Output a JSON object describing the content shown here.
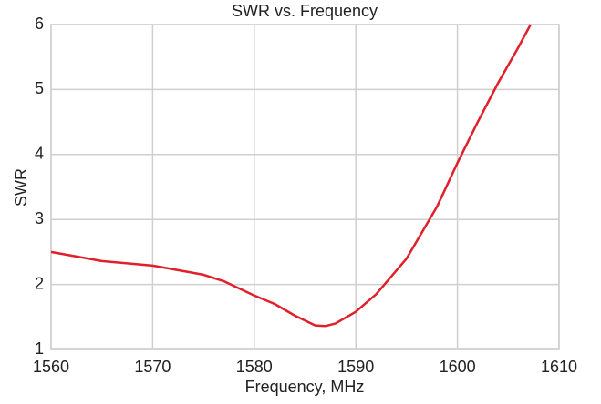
{
  "chart_data": {
    "type": "line",
    "title": "SWR vs. Frequency",
    "xlabel": "Frequency, MHz",
    "ylabel": "SWR",
    "x": [
      1560,
      1565,
      1570,
      1575,
      1577,
      1580,
      1582,
      1584,
      1586,
      1587,
      1588,
      1590,
      1592,
      1595,
      1598,
      1600,
      1602,
      1604,
      1606,
      1607.2
    ],
    "series": [
      {
        "name": "SWR",
        "color": "#e0202a",
        "values": [
          2.5,
          2.36,
          2.29,
          2.15,
          2.05,
          1.83,
          1.7,
          1.52,
          1.37,
          1.36,
          1.4,
          1.58,
          1.85,
          2.4,
          3.2,
          3.87,
          4.5,
          5.1,
          5.65,
          6.0
        ]
      }
    ],
    "xlim": [
      1560,
      1610
    ],
    "xticks": [
      1560,
      1570,
      1580,
      1590,
      1600,
      1610
    ],
    "ylim": [
      1,
      6
    ],
    "yticks": [
      1,
      2,
      3,
      4,
      5,
      6
    ],
    "grid": true
  }
}
